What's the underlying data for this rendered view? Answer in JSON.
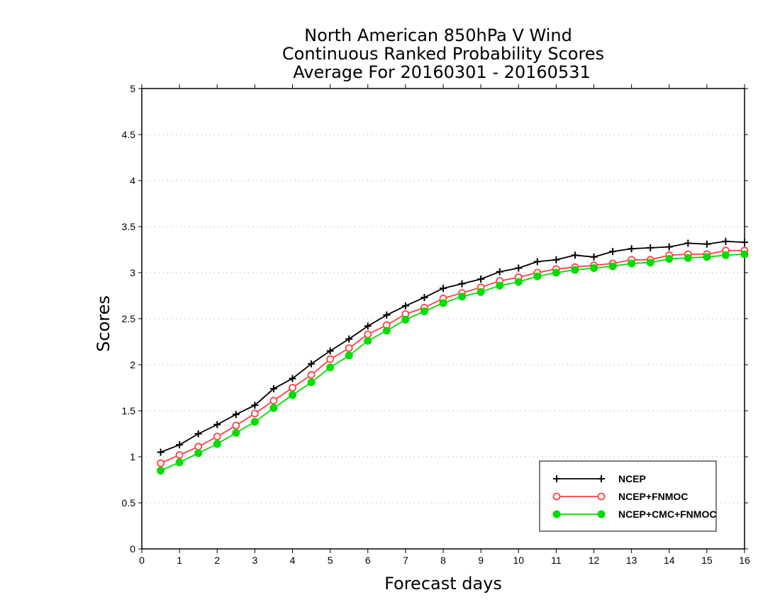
{
  "chart_data": {
    "type": "line",
    "title": [
      "North American 850hPa V Wind",
      "Continuous Ranked Probability Scores",
      "Average For 20160301 - 20160531"
    ],
    "xlabel": "Forecast days",
    "ylabel": "Scores",
    "xlim": [
      0,
      16
    ],
    "ylim": [
      0,
      5
    ],
    "xticks": [
      "0",
      "1",
      "2",
      "3",
      "4",
      "5",
      "6",
      "7",
      "8",
      "9",
      "10",
      "11",
      "12",
      "13",
      "14",
      "15",
      "16"
    ],
    "yticks": [
      "0",
      "0.5",
      "1",
      "1.5",
      "2",
      "2.5",
      "3",
      "3.5",
      "4",
      "4.5",
      "5"
    ],
    "grid": "horizontal dotted",
    "legend_position": "bottom-right",
    "x": [
      0.5,
      1,
      1.5,
      2,
      2.5,
      3,
      3.5,
      4,
      4.5,
      5,
      5.5,
      6,
      6.5,
      7,
      7.5,
      8,
      8.5,
      9,
      9.5,
      10,
      10.5,
      11,
      11.5,
      12,
      12.5,
      13,
      13.5,
      14,
      14.5,
      15,
      15.5,
      16
    ],
    "series": [
      {
        "name": "NCEP",
        "color": "#000000",
        "marker": "plus",
        "values": [
          1.05,
          1.13,
          1.25,
          1.35,
          1.46,
          1.56,
          1.74,
          1.85,
          2.01,
          2.15,
          2.28,
          2.42,
          2.54,
          2.64,
          2.73,
          2.83,
          2.88,
          2.93,
          3.01,
          3.05,
          3.12,
          3.14,
          3.19,
          3.17,
          3.23,
          3.26,
          3.27,
          3.28,
          3.32,
          3.31,
          3.34,
          3.33
        ]
      },
      {
        "name": "NCEP+FNMOC",
        "color": "#ff4040",
        "marker": "open-circle",
        "values": [
          0.93,
          1.02,
          1.11,
          1.22,
          1.34,
          1.47,
          1.61,
          1.75,
          1.89,
          2.06,
          2.18,
          2.33,
          2.43,
          2.55,
          2.62,
          2.72,
          2.78,
          2.84,
          2.91,
          2.95,
          3.0,
          3.04,
          3.06,
          3.08,
          3.1,
          3.14,
          3.14,
          3.19,
          3.2,
          3.2,
          3.24,
          3.24
        ]
      },
      {
        "name": "NCEP+CMC+FNMOC",
        "color": "#00dd00",
        "marker": "filled-circle",
        "values": [
          0.85,
          0.94,
          1.04,
          1.14,
          1.26,
          1.38,
          1.53,
          1.67,
          1.81,
          1.97,
          2.1,
          2.26,
          2.37,
          2.49,
          2.58,
          2.67,
          2.74,
          2.79,
          2.86,
          2.9,
          2.96,
          3.0,
          3.03,
          3.05,
          3.07,
          3.1,
          3.11,
          3.15,
          3.16,
          3.17,
          3.19,
          3.2
        ]
      }
    ]
  }
}
